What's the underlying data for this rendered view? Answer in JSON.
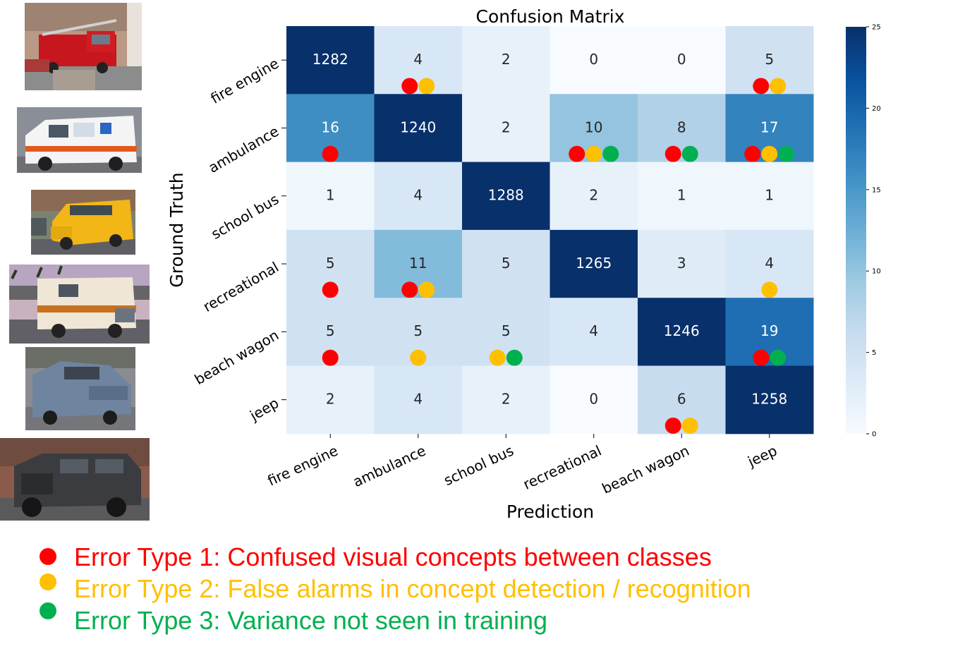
{
  "thumbnails": [
    {
      "name": "fire-engine-photo"
    },
    {
      "name": "ambulance-photo"
    },
    {
      "name": "school-bus-photo"
    },
    {
      "name": "recreational-photo"
    },
    {
      "name": "beach-wagon-photo"
    },
    {
      "name": "jeep-photo"
    }
  ],
  "chart_data": {
    "type": "heatmap",
    "title": "Confusion Matrix",
    "xlabel": "Prediction",
    "ylabel": "Ground Truth",
    "rows": [
      "fire engine",
      "ambulance",
      "school bus",
      "recreational",
      "beach wagon",
      "jeep"
    ],
    "cols": [
      "fire engine",
      "ambulance",
      "school bus",
      "recreational",
      "beach wagon",
      "jeep"
    ],
    "values": [
      [
        1282,
        4,
        2,
        0,
        0,
        5
      ],
      [
        16,
        1240,
        2,
        10,
        8,
        17
      ],
      [
        1,
        4,
        1288,
        2,
        1,
        1
      ],
      [
        5,
        11,
        5,
        1265,
        3,
        4
      ],
      [
        5,
        5,
        5,
        4,
        1246,
        19
      ],
      [
        2,
        4,
        2,
        0,
        6,
        1258
      ]
    ],
    "colorbar": {
      "min": 0,
      "max": 25,
      "ticks": [
        0,
        5,
        10,
        15,
        20,
        25
      ],
      "colormap": "Blues"
    },
    "error_markers": [
      [
        [],
        [
          1,
          2
        ],
        [],
        [],
        [],
        [
          1,
          2
        ]
      ],
      [
        [
          1
        ],
        [],
        [],
        [
          1,
          2,
          3
        ],
        [
          1,
          3
        ],
        [
          1,
          2,
          3
        ]
      ],
      [
        [],
        [],
        [],
        [],
        [],
        []
      ],
      [
        [
          1
        ],
        [
          1,
          2
        ],
        [],
        [],
        [],
        [
          2
        ]
      ],
      [
        [
          1
        ],
        [
          2
        ],
        [
          2,
          3
        ],
        [],
        [],
        [
          1,
          3
        ]
      ],
      [
        [],
        [],
        [],
        [],
        [
          1,
          2
        ],
        []
      ]
    ]
  },
  "legend": {
    "items": [
      {
        "type": 1,
        "text": "Error Type 1: Confused visual concepts between classes",
        "color": "#ff0000"
      },
      {
        "type": 2,
        "text": "Error Type 2: False alarms in concept detection / recognition",
        "color": "#ffc000"
      },
      {
        "type": 3,
        "text": "Error Type 3: Variance not seen in training",
        "color": "#00b050"
      }
    ]
  },
  "colors": {
    "error1": "#ff0000",
    "error2": "#ffc000",
    "error3": "#00b050"
  }
}
